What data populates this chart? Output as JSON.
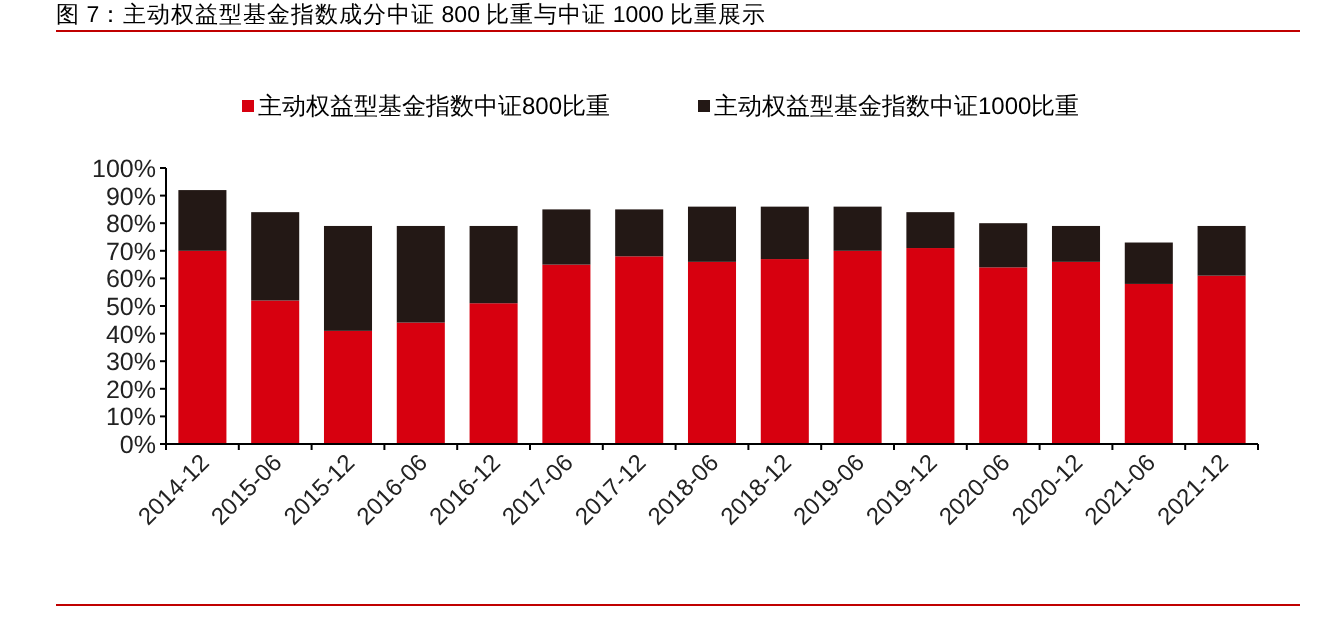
{
  "chart_data": {
    "type": "bar",
    "title": "图 7：主动权益型基金指数成分中证 800 比重与中证 1000 比重展示",
    "categories": [
      "2014-12",
      "2015-06",
      "2015-12",
      "2016-06",
      "2016-12",
      "2017-06",
      "2017-12",
      "2018-06",
      "2018-12",
      "2019-06",
      "2019-12",
      "2020-06",
      "2020-12",
      "2021-06",
      "2021-12"
    ],
    "stacked": true,
    "series": [
      {
        "name": "主动权益型基金指数中证800比重",
        "color": "#d7000f",
        "values": [
          70,
          52,
          41,
          44,
          51,
          65,
          68,
          66,
          67,
          70,
          71,
          64,
          66,
          58,
          61
        ]
      },
      {
        "name": "主动权益型基金指数中证1000比重",
        "color": "#231815",
        "values": [
          22,
          32,
          38,
          35,
          28,
          20,
          17,
          20,
          19,
          16,
          13,
          16,
          13,
          15,
          18
        ]
      }
    ],
    "ylim": [
      0,
      100
    ],
    "yticks": [
      {
        "value": 0,
        "label": "0%"
      },
      {
        "value": 10,
        "label": "10%"
      },
      {
        "value": 20,
        "label": "20%"
      },
      {
        "value": 30,
        "label": "30%"
      },
      {
        "value": 40,
        "label": "40%"
      },
      {
        "value": 50,
        "label": "50%"
      },
      {
        "value": 60,
        "label": "60%"
      },
      {
        "value": 70,
        "label": "70%"
      },
      {
        "value": 80,
        "label": "80%"
      },
      {
        "value": 90,
        "label": "90%"
      },
      {
        "value": 100,
        "label": "100%"
      }
    ],
    "legend": "top",
    "grid": false
  }
}
